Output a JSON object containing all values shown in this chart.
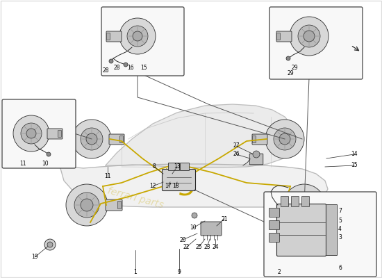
{
  "bg_color": "#ffffff",
  "line_color": "#2a2a2a",
  "brake_line_color": "#c8a800",
  "callout_border": "#444444",
  "car_fill": "#e0e0e0",
  "car_line": "#999999",
  "watermark": "#c8a800",
  "disc_outer": "#d8d8d8",
  "disc_inner": "#bbbbbb",
  "part_label_fs": 5.5,
  "fig_width": 5.5,
  "fig_height": 4.0,
  "dpi": 100
}
